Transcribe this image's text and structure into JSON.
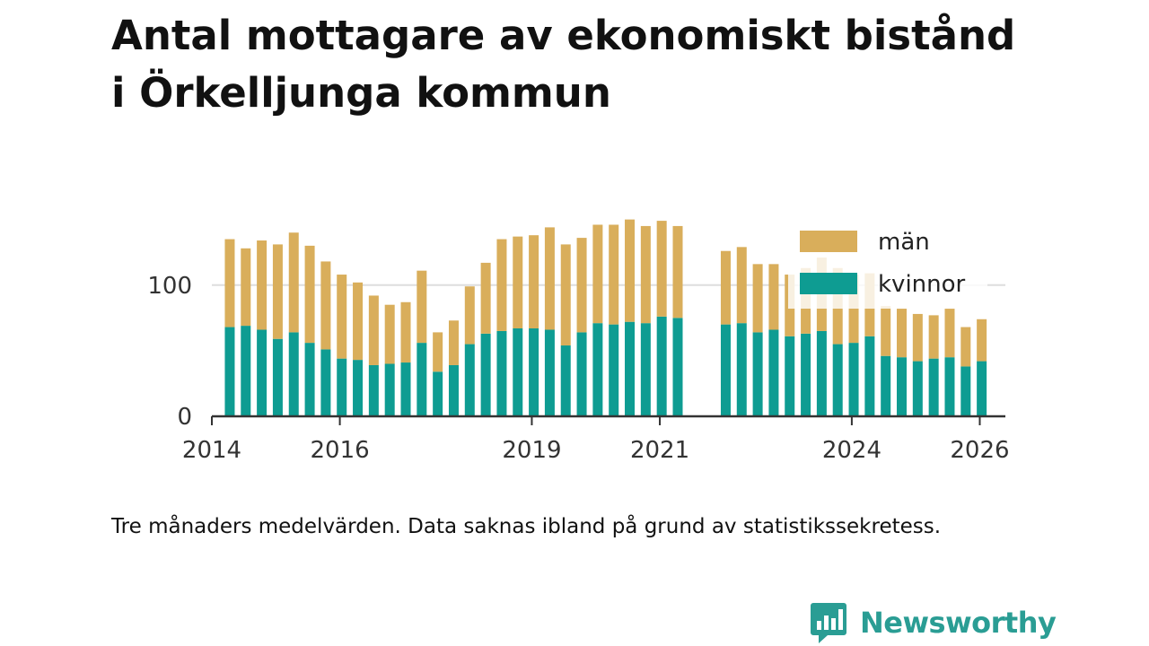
{
  "title_lines": [
    "Antal mottagare av ekonomiskt bistånd",
    "i Örkelljunga kommun"
  ],
  "note": "Tre månaders medelvärden. Data saknas ibland på grund av statistikssekretess.",
  "brand": {
    "name": "Newsworthy"
  },
  "colors": {
    "man": "#d9ae5b",
    "kvinnor": "#0e9c92",
    "grid": "#dddddd",
    "axis": "#333333",
    "brand": "#2a9d94"
  },
  "chart_data": {
    "type": "bar",
    "stacked": true,
    "title": "Antal mottagare av ekonomiskt bistånd i Örkelljunga kommun",
    "ylim": [
      0,
      160
    ],
    "y_ticks": [
      0,
      100
    ],
    "x_range": [
      2014.0,
      2026.4
    ],
    "x_ticks": [
      2014,
      2016,
      2019,
      2021,
      2024,
      2026
    ],
    "x_tick_labels": [
      "2014",
      "2016",
      "2019",
      "2021",
      "2024",
      "2026"
    ],
    "legend": {
      "position": "top-right",
      "entries": [
        "män",
        "kvinnor"
      ]
    },
    "series": [
      {
        "name": "kvinnor",
        "x": [
          2014.28,
          2014.53,
          2014.78,
          2015.03,
          2015.28,
          2015.53,
          2015.78,
          2016.03,
          2016.28,
          2016.53,
          2016.78,
          2017.03,
          2017.28,
          2017.53,
          2017.78,
          2018.03,
          2018.28,
          2018.53,
          2018.78,
          2019.03,
          2019.28,
          2019.53,
          2019.78,
          2020.03,
          2020.28,
          2020.53,
          2020.78,
          2021.03,
          2021.28,
          2022.03,
          2022.28,
          2022.53,
          2022.78,
          2023.03,
          2023.28,
          2023.53,
          2023.78,
          2024.03,
          2024.28,
          2024.53,
          2024.78,
          2025.03,
          2025.28,
          2025.53,
          2025.78,
          2026.03
        ],
        "values": [
          68,
          69,
          66,
          59,
          64,
          56,
          51,
          44,
          43,
          39,
          40,
          41,
          56,
          34,
          39,
          55,
          63,
          65,
          67,
          67,
          66,
          54,
          64,
          71,
          70,
          72,
          71,
          76,
          75,
          70,
          71,
          64,
          66,
          61,
          63,
          65,
          55,
          56,
          61,
          46,
          45,
          42,
          44,
          45,
          38,
          42
        ]
      },
      {
        "name": "män",
        "x": [
          2014.28,
          2014.53,
          2014.78,
          2015.03,
          2015.28,
          2015.53,
          2015.78,
          2016.03,
          2016.28,
          2016.53,
          2016.78,
          2017.03,
          2017.28,
          2017.53,
          2017.78,
          2018.03,
          2018.28,
          2018.53,
          2018.78,
          2019.03,
          2019.28,
          2019.53,
          2019.78,
          2020.03,
          2020.28,
          2020.53,
          2020.78,
          2021.03,
          2021.28,
          2022.03,
          2022.28,
          2022.53,
          2022.78,
          2023.03,
          2023.28,
          2023.53,
          2023.78,
          2024.03,
          2024.28,
          2024.53,
          2024.78,
          2025.03,
          2025.28,
          2025.53,
          2025.78,
          2026.03
        ],
        "values": [
          67,
          59,
          68,
          72,
          76,
          74,
          67,
          64,
          59,
          53,
          45,
          46,
          55,
          30,
          34,
          44,
          54,
          70,
          70,
          71,
          78,
          77,
          72,
          75,
          76,
          78,
          74,
          73,
          70,
          56,
          58,
          52,
          50,
          47,
          50,
          56,
          58,
          52,
          48,
          38,
          37,
          36,
          33,
          37,
          30,
          32
        ]
      }
    ]
  }
}
